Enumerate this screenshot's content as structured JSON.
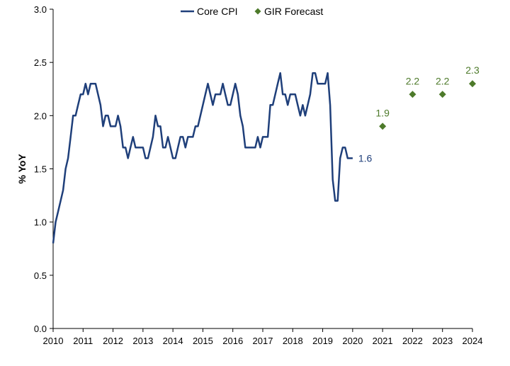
{
  "chart_data": {
    "type": "line",
    "title": "",
    "xlabel": "",
    "ylabel": "% YoY",
    "xlim": [
      2010,
      2024
    ],
    "ylim": [
      0,
      3.0
    ],
    "y_ticks": [
      "0.0",
      "0.5",
      "1.0",
      "1.5",
      "2.0",
      "2.5",
      "3.0"
    ],
    "x_ticks": [
      "2010",
      "2011",
      "2012",
      "2013",
      "2014",
      "2015",
      "2016",
      "2017",
      "2018",
      "2019",
      "2020",
      "2021",
      "2022",
      "2023",
      "2024"
    ],
    "grid": false,
    "legend_position": "top-center",
    "series": [
      {
        "name": "Core CPI",
        "type": "line",
        "color": "#1f3f7a",
        "end_label": "1.6",
        "x": [
          2010.0,
          2010.083,
          2010.167,
          2010.25,
          2010.333,
          2010.417,
          2010.5,
          2010.583,
          2010.667,
          2010.75,
          2010.833,
          2010.917,
          2011.0,
          2011.083,
          2011.167,
          2011.25,
          2011.333,
          2011.417,
          2011.5,
          2011.583,
          2011.667,
          2011.75,
          2011.833,
          2011.917,
          2012.0,
          2012.083,
          2012.167,
          2012.25,
          2012.333,
          2012.417,
          2012.5,
          2012.583,
          2012.667,
          2012.75,
          2012.833,
          2012.917,
          2013.0,
          2013.083,
          2013.167,
          2013.25,
          2013.333,
          2013.417,
          2013.5,
          2013.583,
          2013.667,
          2013.75,
          2013.833,
          2013.917,
          2014.0,
          2014.083,
          2014.167,
          2014.25,
          2014.333,
          2014.417,
          2014.5,
          2014.583,
          2014.667,
          2014.75,
          2014.833,
          2014.917,
          2015.0,
          2015.083,
          2015.167,
          2015.25,
          2015.333,
          2015.417,
          2015.5,
          2015.583,
          2015.667,
          2015.75,
          2015.833,
          2015.917,
          2016.0,
          2016.083,
          2016.167,
          2016.25,
          2016.333,
          2016.417,
          2016.5,
          2016.583,
          2016.667,
          2016.75,
          2016.833,
          2016.917,
          2017.0,
          2017.083,
          2017.167,
          2017.25,
          2017.333,
          2017.417,
          2017.5,
          2017.583,
          2017.667,
          2017.75,
          2017.833,
          2017.917,
          2018.0,
          2018.083,
          2018.167,
          2018.25,
          2018.333,
          2018.417,
          2018.5,
          2018.583,
          2018.667,
          2018.75,
          2018.833,
          2018.917,
          2019.0,
          2019.083,
          2019.167,
          2019.25,
          2019.333,
          2019.417,
          2019.5,
          2019.583,
          2019.667,
          2019.75,
          2019.833,
          2019.917,
          2020.0
        ],
        "y": [
          0.8,
          1.0,
          1.1,
          1.2,
          1.3,
          1.5,
          1.6,
          1.8,
          2.0,
          2.0,
          2.1,
          2.2,
          2.2,
          2.3,
          2.2,
          2.3,
          2.3,
          2.3,
          2.2,
          2.1,
          1.9,
          2.0,
          2.0,
          1.9,
          1.9,
          1.9,
          2.0,
          1.9,
          1.7,
          1.7,
          1.6,
          1.7,
          1.8,
          1.7,
          1.7,
          1.7,
          1.7,
          1.6,
          1.6,
          1.7,
          1.8,
          2.0,
          1.9,
          1.9,
          1.7,
          1.7,
          1.8,
          1.7,
          1.6,
          1.6,
          1.7,
          1.8,
          1.8,
          1.7,
          1.8,
          1.8,
          1.8,
          1.9,
          1.9,
          2.0,
          2.1,
          2.2,
          2.3,
          2.2,
          2.1,
          2.2,
          2.2,
          2.2,
          2.3,
          2.2,
          2.1,
          2.1,
          2.2,
          2.3,
          2.2,
          2.0,
          1.9,
          1.7,
          1.7,
          1.7,
          1.7,
          1.7,
          1.8,
          1.7,
          1.8,
          1.8,
          1.8,
          2.1,
          2.1,
          2.2,
          2.3,
          2.4,
          2.2,
          2.2,
          2.1,
          2.2,
          2.2,
          2.2,
          2.1,
          2.0,
          2.1,
          2.0,
          2.1,
          2.2,
          2.4,
          2.4,
          2.3,
          2.3,
          2.3,
          2.3,
          2.4,
          2.1,
          1.4,
          1.2,
          1.2,
          1.6,
          1.7,
          1.7,
          1.6,
          1.6,
          1.6
        ]
      },
      {
        "name": "GIR Forecast",
        "type": "scatter",
        "color": "#4d7a2a",
        "x": [
          2021,
          2022,
          2023,
          2024
        ],
        "y": [
          1.9,
          2.2,
          2.2,
          2.3
        ],
        "labels": [
          "1.9",
          "2.2",
          "2.2",
          "2.3"
        ]
      }
    ]
  }
}
